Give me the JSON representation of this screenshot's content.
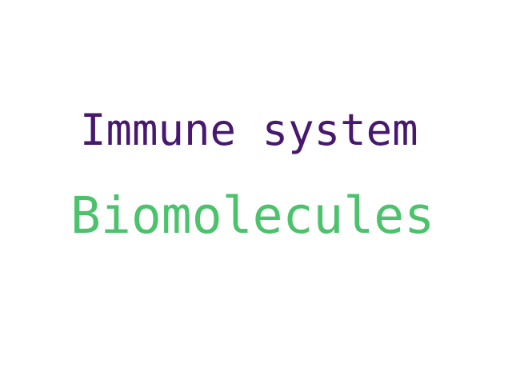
{
  "word_cloud": {
    "words": [
      {
        "text": "Immune system",
        "color": "#47186e"
      },
      {
        "text": "Biomolecules",
        "color": "#4cc26c"
      }
    ]
  }
}
